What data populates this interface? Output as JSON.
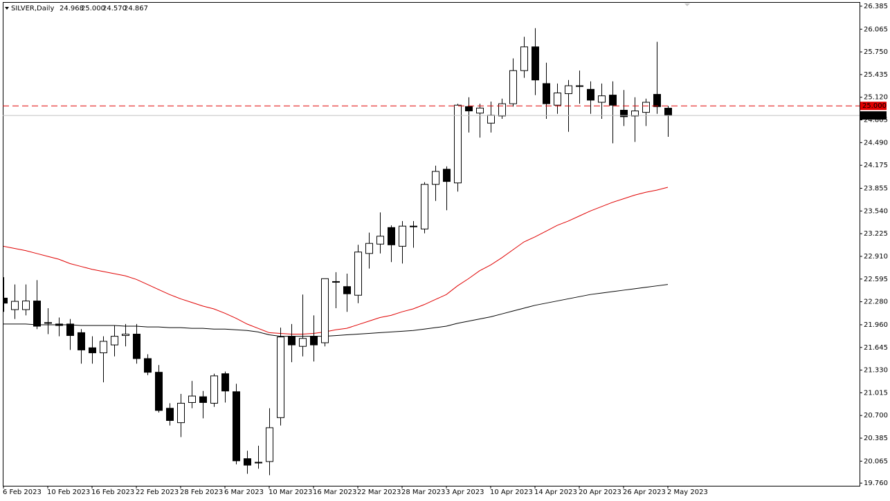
{
  "chart_data": {
    "type": "candlestick",
    "title": "SILVER,Daily",
    "info_labels": [
      "24.968",
      "25.000",
      "24.570",
      "24.867"
    ],
    "categories": [
      "6 Feb 2023",
      null,
      null,
      null,
      "10 Feb 2023",
      null,
      null,
      null,
      "16 Feb 2023",
      null,
      null,
      null,
      "22 Feb 2023",
      null,
      null,
      null,
      "28 Feb 2023",
      null,
      null,
      null,
      "6 Mar 2023",
      null,
      null,
      null,
      "10 Mar 2023",
      null,
      null,
      null,
      "16 Mar 2023",
      null,
      null,
      null,
      "22 Mar 2023",
      null,
      null,
      null,
      "28 Mar 2023",
      null,
      null,
      null,
      "3 Apr 2023",
      null,
      null,
      null,
      "10 Apr 2023",
      null,
      null,
      null,
      "14 Apr 2023",
      null,
      null,
      null,
      "20 Apr 2023",
      null,
      null,
      null,
      "26 Apr 2023",
      null,
      null,
      null,
      "2 May 2023"
    ],
    "open": [
      22.33,
      22.17,
      22.17,
      22.29,
      21.99,
      21.97,
      21.97,
      21.85,
      21.64,
      21.57,
      21.68,
      21.81,
      21.83,
      21.49,
      21.3,
      20.8,
      20.6,
      20.88,
      20.96,
      20.87,
      21.28,
      21.03,
      20.1,
      20.05,
      20.06,
      20.67,
      21.8,
      21.66,
      21.8,
      21.71,
      22.56,
      22.49,
      22.37,
      22.95,
      23.08,
      23.31,
      23.05,
      23.33,
      23.29,
      23.91,
      24.12,
      23.93,
      24.99,
      24.9,
      24.76,
      24.86,
      25.03,
      25.49,
      25.82,
      25.31,
      25.01,
      25.17,
      25.28,
      25.23,
      25.05,
      25.15,
      24.94,
      24.86,
      24.91,
      25.16,
      24.968
    ],
    "high": [
      22.62,
      22.52,
      22.52,
      22.58,
      22.19,
      22.06,
      22.04,
      21.9,
      21.8,
      21.8,
      21.95,
      21.97,
      21.97,
      21.55,
      21.4,
      20.87,
      21.0,
      21.18,
      21.04,
      21.28,
      21.31,
      21.14,
      20.21,
      20.28,
      20.8,
      21.92,
      21.97,
      22.38,
      22.09,
      22.6,
      22.69,
      22.67,
      23.07,
      23.24,
      23.52,
      23.34,
      23.4,
      23.4,
      23.94,
      24.17,
      24.16,
      25.03,
      25.12,
      25.03,
      25.06,
      25.1,
      25.66,
      25.96,
      26.08,
      25.6,
      25.31,
      25.36,
      25.49,
      25.34,
      25.31,
      25.34,
      25.22,
      25.12,
      25.1,
      25.89,
      25.0
    ],
    "low": [
      22.14,
      22.04,
      22.09,
      21.9,
      21.83,
      21.8,
      21.61,
      21.42,
      21.42,
      21.16,
      21.52,
      21.66,
      21.42,
      21.26,
      20.74,
      20.56,
      20.4,
      20.8,
      20.66,
      20.82,
      20.88,
      20.02,
      19.89,
      19.96,
      19.87,
      20.56,
      21.44,
      21.52,
      21.45,
      21.66,
      22.19,
      22.14,
      22.26,
      22.74,
      22.95,
      22.83,
      22.81,
      23.03,
      23.23,
      23.68,
      23.55,
      23.81,
      24.63,
      24.56,
      24.63,
      24.82,
      24.99,
      25.39,
      25.15,
      24.82,
      24.89,
      24.64,
      25.03,
      24.89,
      24.82,
      24.48,
      24.72,
      24.5,
      24.72,
      24.89,
      24.57
    ],
    "close": [
      22.26,
      22.285,
      22.29,
      21.94,
      21.98,
      21.95,
      21.81,
      21.61,
      21.57,
      21.73,
      21.8,
      21.83,
      21.49,
      21.3,
      20.77,
      20.63,
      20.87,
      20.97,
      20.88,
      21.25,
      21.04,
      20.07,
      20.01,
      20.04,
      20.53,
      21.79,
      21.68,
      21.77,
      21.68,
      22.6,
      22.55,
      22.39,
      22.97,
      23.09,
      23.19,
      23.07,
      23.33,
      23.32,
      23.91,
      24.09,
      23.95,
      25.01,
      24.93,
      24.97,
      24.87,
      25.03,
      25.49,
      25.82,
      25.36,
      25.03,
      25.18,
      25.28,
      25.27,
      25.08,
      25.14,
      25.01,
      24.85,
      24.93,
      25.05,
      24.99,
      24.867
    ],
    "up_color": "#ffffff",
    "down_color": "#000000",
    "moving_averages": [
      {
        "color": "#e00000",
        "values": [
          23.05,
          23.02,
          22.99,
          22.95,
          22.91,
          22.87,
          22.81,
          22.77,
          22.73,
          22.7,
          22.67,
          22.64,
          22.59,
          22.52,
          22.45,
          22.38,
          22.32,
          22.27,
          22.22,
          22.18,
          22.12,
          22.05,
          21.97,
          21.91,
          21.85,
          21.84,
          21.83,
          21.83,
          21.84,
          21.86,
          21.89,
          21.91,
          21.96,
          22.01,
          22.06,
          22.09,
          22.14,
          22.18,
          22.24,
          22.31,
          22.38,
          22.5,
          22.6,
          22.71,
          22.79,
          22.89,
          23.0,
          23.11,
          23.18,
          23.26,
          23.34,
          23.4,
          23.47,
          23.54,
          23.6,
          23.66,
          23.71,
          23.76,
          23.8,
          23.83,
          23.87
        ]
      },
      {
        "color": "#000000",
        "values": [
          21.97,
          21.97,
          21.97,
          21.96,
          21.96,
          21.96,
          21.96,
          21.95,
          21.95,
          21.95,
          21.95,
          21.94,
          21.94,
          21.93,
          21.93,
          21.92,
          21.92,
          21.91,
          21.91,
          21.9,
          21.9,
          21.89,
          21.88,
          21.86,
          21.82,
          21.8,
          21.8,
          21.8,
          21.8,
          21.8,
          21.81,
          21.82,
          21.83,
          21.84,
          21.85,
          21.86,
          21.87,
          21.88,
          21.9,
          21.92,
          21.94,
          21.98,
          22.01,
          22.04,
          22.07,
          22.11,
          22.15,
          22.19,
          22.23,
          22.26,
          22.29,
          22.32,
          22.35,
          22.38,
          22.4,
          22.42,
          22.44,
          22.46,
          22.48,
          22.5,
          22.52
        ]
      }
    ],
    "hlines": [
      {
        "value": 25.0,
        "label": "25.000",
        "color": "#e00000",
        "dashed": true
      },
      {
        "value": 24.867,
        "label": "24.867",
        "color": "#c0c0c0",
        "dashed": false
      }
    ],
    "ylim": [
      19.723,
      26.442
    ],
    "yticks": [
      {
        "value": 26.385,
        "label": "26.385"
      },
      {
        "value": 26.065,
        "label": "26.065"
      },
      {
        "value": 25.75,
        "label": "25.750"
      },
      {
        "value": 25.435,
        "label": "25.435"
      },
      {
        "value": 25.12,
        "label": "25.120"
      },
      {
        "value": 24.805,
        "label": "24.805"
      },
      {
        "value": 24.49,
        "label": "24.490"
      },
      {
        "value": 24.175,
        "label": "24.175"
      },
      {
        "value": 23.855,
        "label": "23.855"
      },
      {
        "value": 23.54,
        "label": "23.540"
      },
      {
        "value": 23.225,
        "label": "23.225"
      },
      {
        "value": 22.91,
        "label": "22.910"
      },
      {
        "value": 22.595,
        "label": "22.595"
      },
      {
        "value": 22.28,
        "label": "22.280"
      },
      {
        "value": 21.96,
        "label": "21.960"
      },
      {
        "value": 21.645,
        "label": "21.645"
      },
      {
        "value": 21.33,
        "label": "21.330"
      },
      {
        "value": 21.015,
        "label": "21.015"
      },
      {
        "value": 20.7,
        "label": "20.700"
      },
      {
        "value": 20.385,
        "label": "20.385"
      },
      {
        "value": 20.065,
        "label": "20.065"
      },
      {
        "value": 19.76,
        "label": "19.760"
      }
    ]
  }
}
